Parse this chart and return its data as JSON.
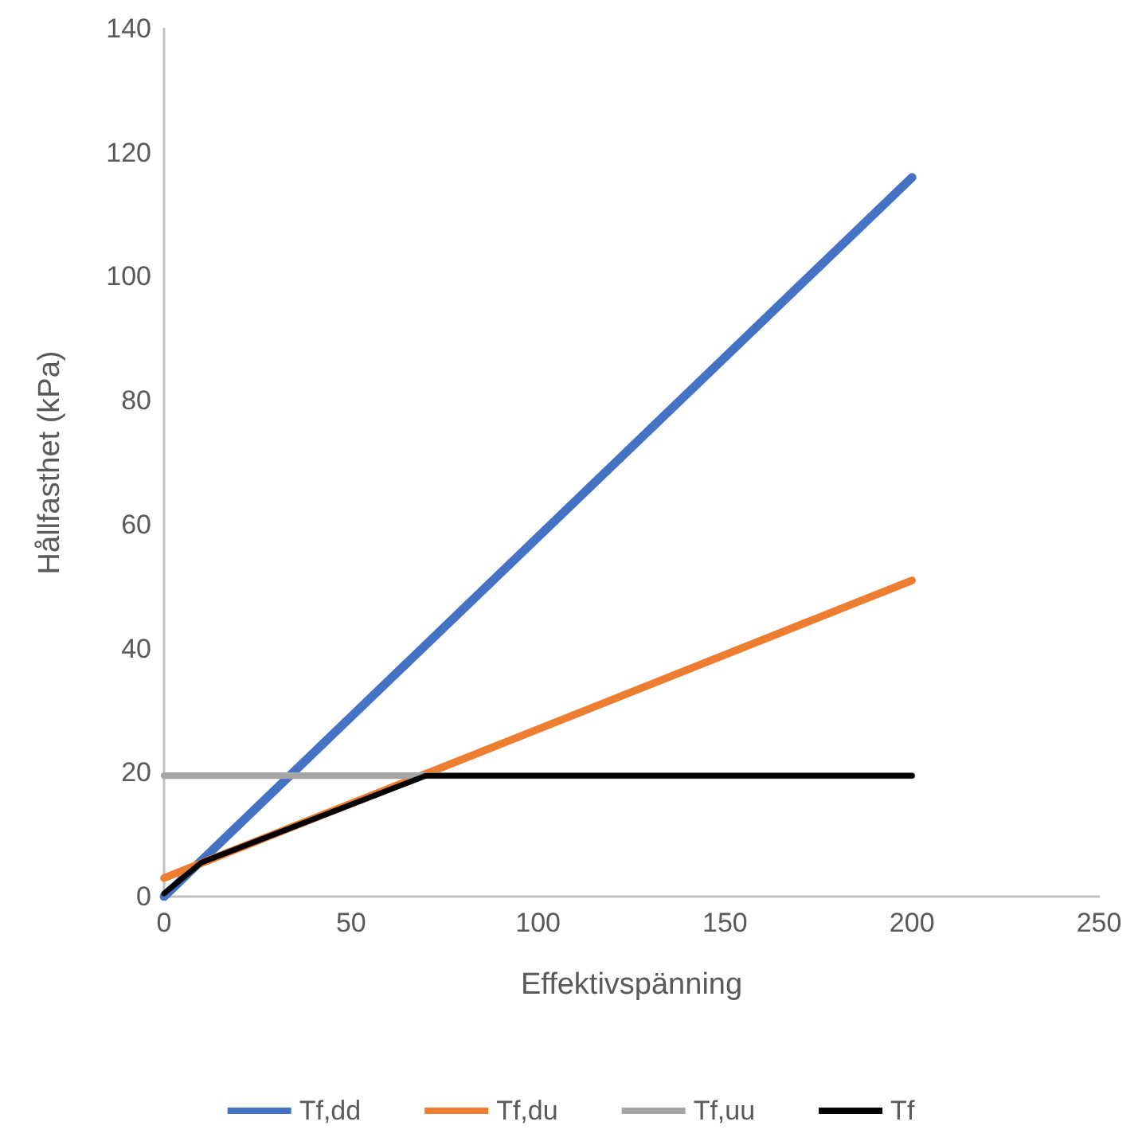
{
  "chart_data": {
    "type": "line",
    "xlabel": "Effektivspänning",
    "ylabel": "Hållfasthet (kPa)",
    "xlim": [
      0,
      250
    ],
    "xticks": [
      0,
      50,
      100,
      150,
      200,
      250
    ],
    "ylim": [
      0,
      140
    ],
    "yticks": [
      0,
      20,
      40,
      60,
      80,
      100,
      120,
      140
    ],
    "grid": false,
    "legend": "bottom",
    "marker": "none",
    "line_style": "solid",
    "series": [
      {
        "name": "Tf,dd",
        "color": "#4472c4",
        "x": [
          0,
          200
        ],
        "values": [
          0,
          116
        ]
      },
      {
        "name": "Tf,du",
        "color": "#ed7d31",
        "x": [
          0,
          200
        ],
        "values": [
          3,
          51
        ]
      },
      {
        "name": "Tf,uu",
        "color": "#a5a5a5",
        "x": [
          0,
          200
        ],
        "values": [
          19.5,
          19.5
        ]
      },
      {
        "name": "Tf",
        "color": "#000000",
        "x": [
          0,
          10,
          70,
          200
        ],
        "values": [
          0.5,
          5.5,
          19.5,
          19.5
        ]
      }
    ]
  }
}
